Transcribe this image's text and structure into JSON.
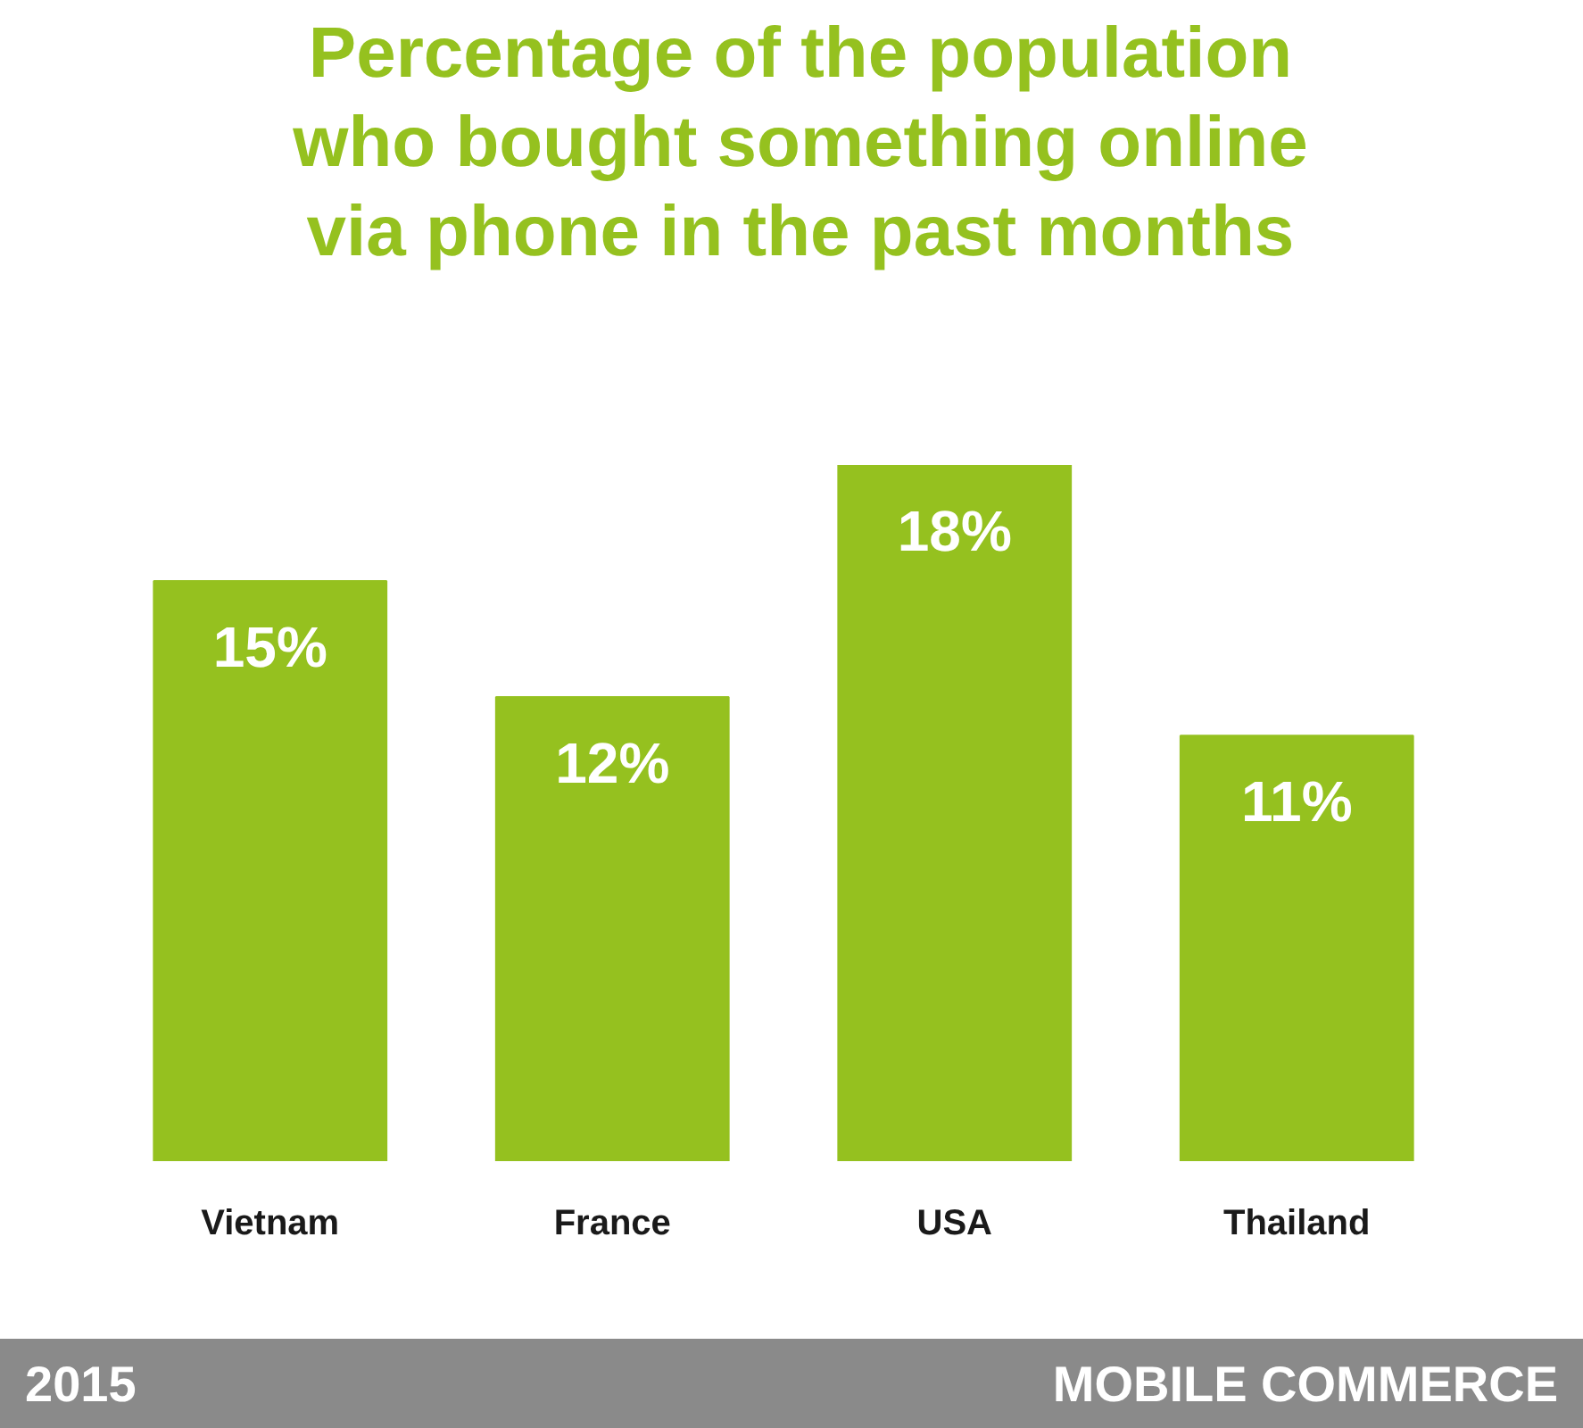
{
  "chart_data": {
    "type": "bar",
    "title": "Percentage of the population\nwho bought something online\nvia phone in the past months",
    "categories": [
      "Vietnam",
      "France",
      "USA",
      "Thailand"
    ],
    "values": [
      15,
      12,
      18,
      11
    ],
    "value_labels": [
      "15%",
      "12%",
      "18%",
      "11%"
    ],
    "color": "#95c11f",
    "annotations": [
      "2015",
      "MOBILE COMMERCE"
    ]
  }
}
